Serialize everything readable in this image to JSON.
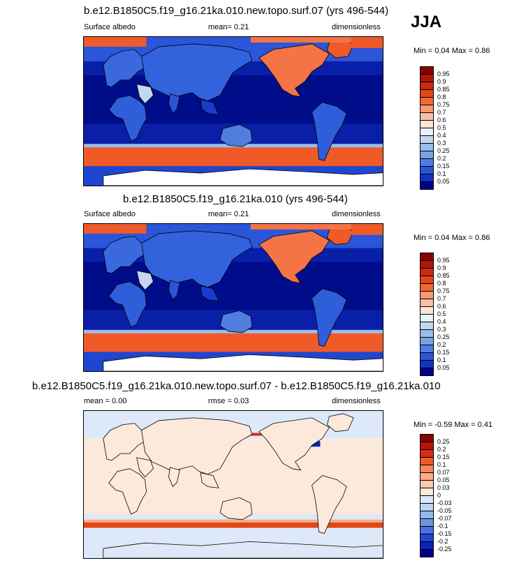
{
  "season": "JJA",
  "panels": [
    {
      "title": "b.e12.B1850C5.f19_g16.21ka.010.new.topo.surf.07 (yrs 496-544)",
      "left_label": "Surface albedo",
      "center_label": "mean=   0.21",
      "right_label": "dimensionless",
      "minmax": "Min =   0.04 Max =   0.86",
      "type": "field"
    },
    {
      "title": "b.e12.B1850C5.f19_g16.21ka.010 (yrs 496-544)",
      "left_label": "Surface albedo",
      "center_label": "mean=   0.21",
      "right_label": "dimensionless",
      "minmax": "Min =  0.04 Max =   0.86",
      "type": "field"
    },
    {
      "title": "b.e12.B1850C5.f19_g16.21ka.010.new.topo.surf.07 - b.e12.B1850C5.f19_g16.21ka.010",
      "left_label": "mean =   0.00",
      "center_label": "rmse =   0.03",
      "right_label": "dimensionless",
      "minmax": "Min =  -0.59 Max =   0.41",
      "type": "diff"
    }
  ],
  "field_colorbar": {
    "labels": [
      "0.95",
      "0.9",
      "0.85",
      "0.8",
      "0.75",
      "0.7",
      "0.6",
      "0.5",
      "0.4",
      "0.3",
      "0.25",
      "0.2",
      "0.15",
      "0.1",
      "0.05"
    ],
    "colors": [
      "#8b0000",
      "#b0150a",
      "#cc2a10",
      "#e04818",
      "#f06838",
      "#f79a72",
      "#fbc0a4",
      "#fde4d4",
      "#e8f1fb",
      "#c3d7f2",
      "#9cbdeb",
      "#7aa2e3",
      "#4f7ede",
      "#2a55d8",
      "#1033c4",
      "#00008b"
    ]
  },
  "diff_colorbar": {
    "labels": [
      "0.25",
      "0.2",
      "0.15",
      "0.1",
      "0.07",
      "0.05",
      "0.03",
      "0",
      "-0.03",
      "-0.05",
      "-0.07",
      "-0.1",
      "-0.15",
      "-0.2",
      "-0.25"
    ],
    "colors": [
      "#8b0000",
      "#b8140a",
      "#d62d12",
      "#ee5a2a",
      "#f7875c",
      "#fbab86",
      "#fcc9ae",
      "#fde9dc",
      "#dde9f8",
      "#bcd3f2",
      "#98b8eb",
      "#6f95e2",
      "#4a6fdc",
      "#2446d2",
      "#0a22b8",
      "#00008b"
    ]
  }
}
